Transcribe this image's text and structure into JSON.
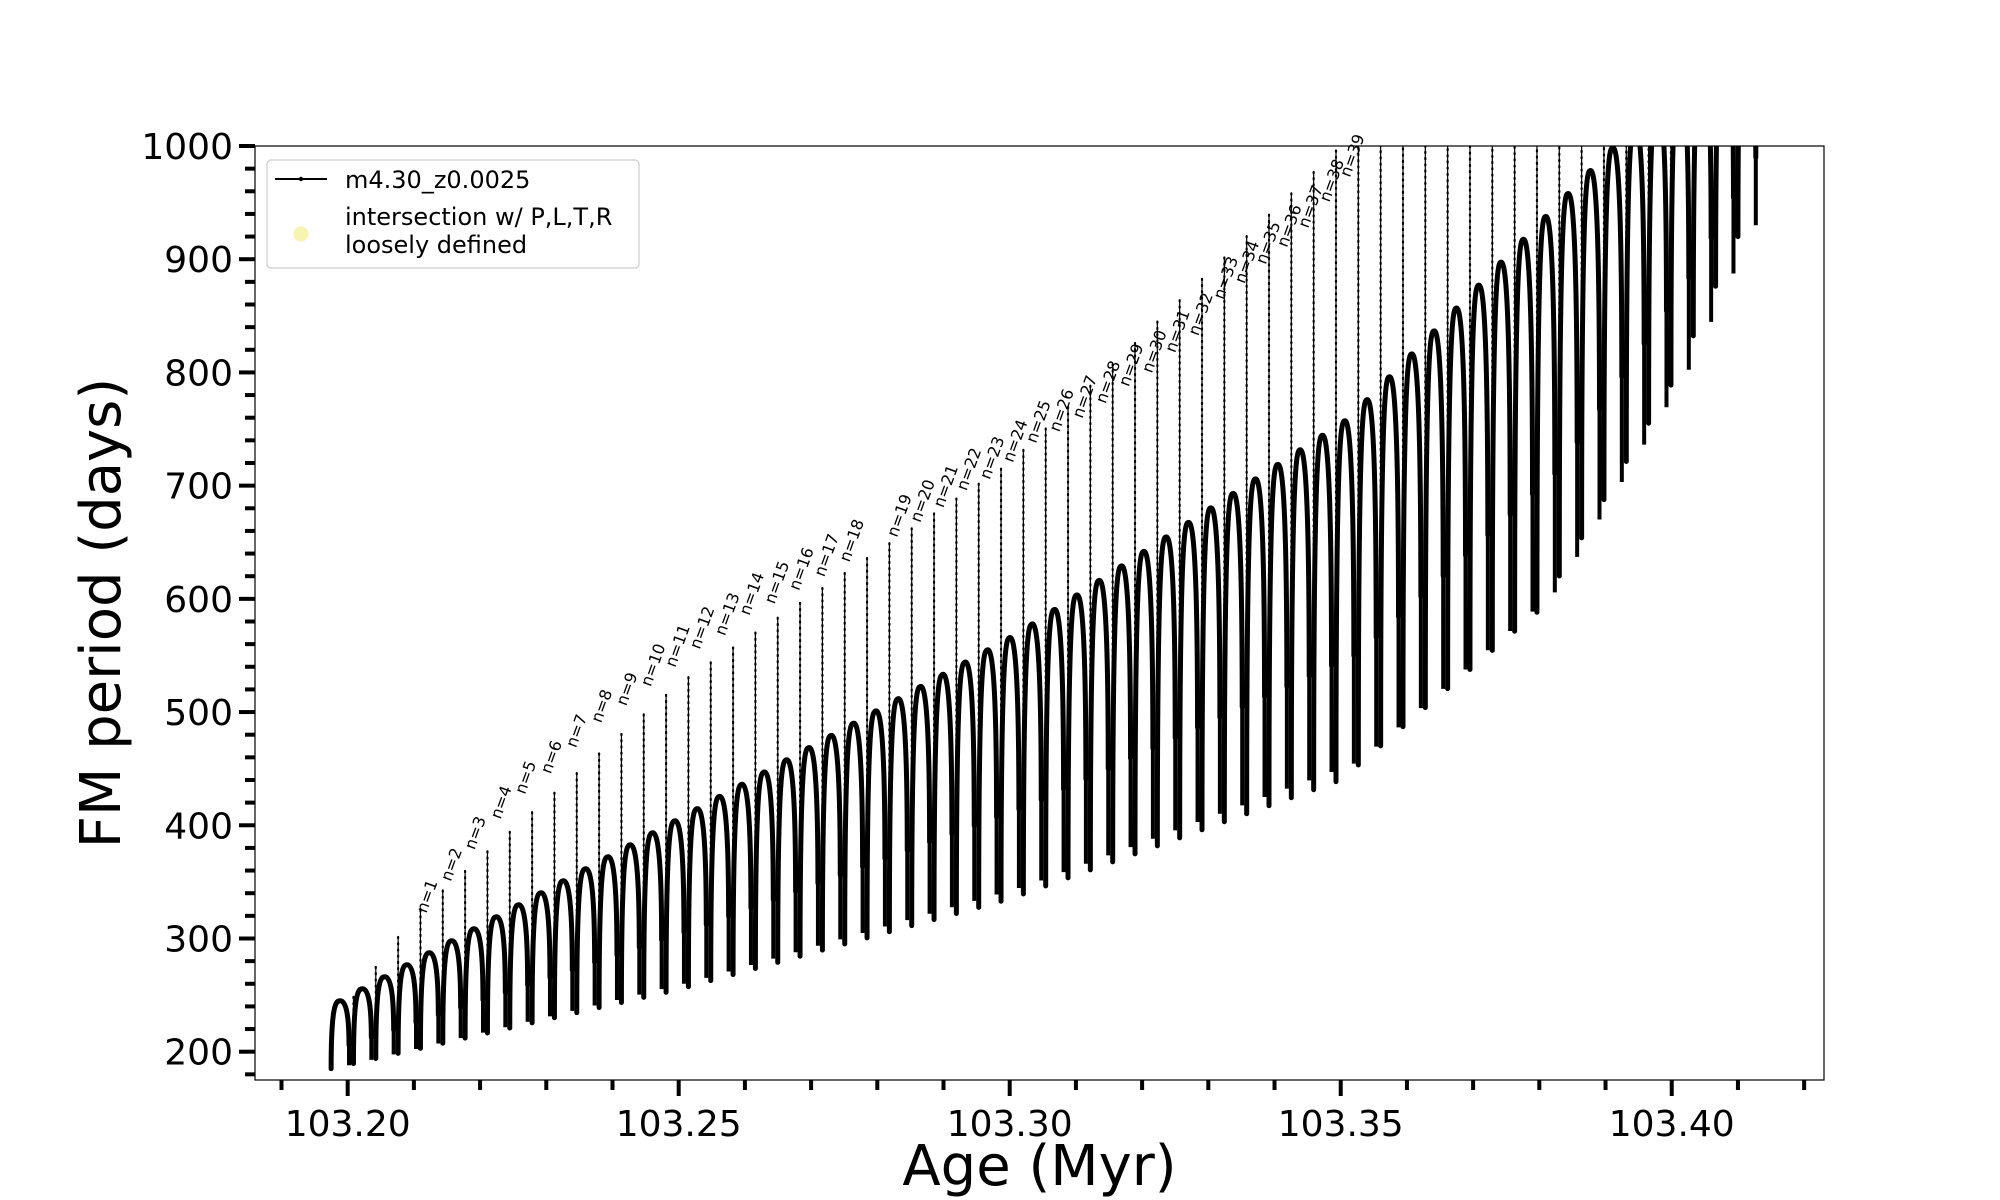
{
  "chart_data": {
    "type": "line",
    "title": "",
    "xlabel": "Age (Myr)",
    "ylabel": "FM period (days)",
    "xlim": [
      103.186,
      103.423
    ],
    "ylim": [
      175,
      1000
    ],
    "xticks": [
      103.2,
      103.25,
      103.3,
      103.35,
      103.4
    ],
    "xtick_labels": [
      "103.20",
      "103.25",
      "103.30",
      "103.35",
      "103.40"
    ],
    "yticks": [
      200,
      300,
      400,
      500,
      600,
      700,
      800,
      900,
      1000
    ],
    "ytick_labels": [
      "200",
      "300",
      "400",
      "500",
      "600",
      "700",
      "800",
      "900",
      "1000"
    ],
    "grid": false,
    "legend": {
      "position": "top-left",
      "entries": [
        {
          "label": "m4.30_z0.0025",
          "marker": "line-with-dots",
          "color": "#000000"
        },
        {
          "label": "intersection w/ P,L,T,R\nloosely defined",
          "marker": "circle",
          "color": "#f7f3b0"
        }
      ]
    },
    "series": [
      {
        "name": "m4.30_z0.0025",
        "color": "#000000",
        "cycles": {
          "count": 64,
          "age_start": 103.1975,
          "age_end": 103.41,
          "upper_envelope": [
            [
              103.1975,
              222
            ],
            [
              103.21,
              320
            ],
            [
              103.25,
              525
            ],
            [
              103.3,
              720
            ],
            [
              103.35,
              1000
            ]
          ],
          "arc_top": [
            [
              103.1975,
              245
            ],
            [
              103.25,
              410
            ],
            [
              103.3,
              570
            ],
            [
              103.35,
              760
            ],
            [
              103.39,
              1000
            ]
          ],
          "arc_bottom": [
            [
              103.1975,
              185
            ],
            [
              103.25,
              255
            ],
            [
              103.3,
              335
            ],
            [
              103.35,
              440
            ],
            [
              103.38,
              590
            ],
            [
              103.4,
              790
            ],
            [
              103.41,
              920
            ]
          ]
        }
      }
    ],
    "annotations": [
      {
        "text": "n=1",
        "x": 103.2102,
        "y": 320
      },
      {
        "text": "n=2",
        "x": 103.2139,
        "y": 348
      },
      {
        "text": "n=3",
        "x": 103.2175,
        "y": 376
      },
      {
        "text": "n=4",
        "x": 103.2214,
        "y": 403
      },
      {
        "text": "n=5",
        "x": 103.2251,
        "y": 425
      },
      {
        "text": "n=6",
        "x": 103.229,
        "y": 443
      },
      {
        "text": "n=7",
        "x": 103.2328,
        "y": 466
      },
      {
        "text": "n=8",
        "x": 103.2366,
        "y": 488
      },
      {
        "text": "n=9",
        "x": 103.2404,
        "y": 503
      },
      {
        "text": "n=10",
        "x": 103.2441,
        "y": 520
      },
      {
        "text": "n=11",
        "x": 103.2478,
        "y": 537
      },
      {
        "text": "n=12",
        "x": 103.2515,
        "y": 553
      },
      {
        "text": "n=13",
        "x": 103.2553,
        "y": 565
      },
      {
        "text": "n=14",
        "x": 103.259,
        "y": 583
      },
      {
        "text": "n=15",
        "x": 103.2628,
        "y": 593
      },
      {
        "text": "n=16",
        "x": 103.2665,
        "y": 605
      },
      {
        "text": "n=17",
        "x": 103.2703,
        "y": 617
      },
      {
        "text": "n=18",
        "x": 103.2741,
        "y": 630
      },
      {
        "text": "n=19",
        "x": 103.2813,
        "y": 652
      },
      {
        "text": "n=20",
        "x": 103.2848,
        "y": 665
      },
      {
        "text": "n=21",
        "x": 103.2883,
        "y": 678
      },
      {
        "text": "n=22",
        "x": 103.2918,
        "y": 693
      },
      {
        "text": "n=23",
        "x": 103.2953,
        "y": 703
      },
      {
        "text": "n=24",
        "x": 103.2988,
        "y": 718
      },
      {
        "text": "n=25",
        "x": 103.3023,
        "y": 735
      },
      {
        "text": "n=26",
        "x": 103.3058,
        "y": 745
      },
      {
        "text": "n=27",
        "x": 103.3093,
        "y": 757
      },
      {
        "text": "n=28",
        "x": 103.3128,
        "y": 770
      },
      {
        "text": "n=29",
        "x": 103.3163,
        "y": 785
      },
      {
        "text": "n=30",
        "x": 103.3198,
        "y": 797
      },
      {
        "text": "n=31",
        "x": 103.3233,
        "y": 815
      },
      {
        "text": "n=32",
        "x": 103.3268,
        "y": 830
      },
      {
        "text": "n=33",
        "x": 103.3306,
        "y": 862
      },
      {
        "text": "n=34",
        "x": 103.3338,
        "y": 876
      },
      {
        "text": "n=35",
        "x": 103.337,
        "y": 893
      },
      {
        "text": "n=36",
        "x": 103.3402,
        "y": 908
      },
      {
        "text": "n=37",
        "x": 103.3434,
        "y": 925
      },
      {
        "text": "n=38",
        "x": 103.3466,
        "y": 948
      },
      {
        "text": "n=39",
        "x": 103.3497,
        "y": 970
      }
    ]
  }
}
